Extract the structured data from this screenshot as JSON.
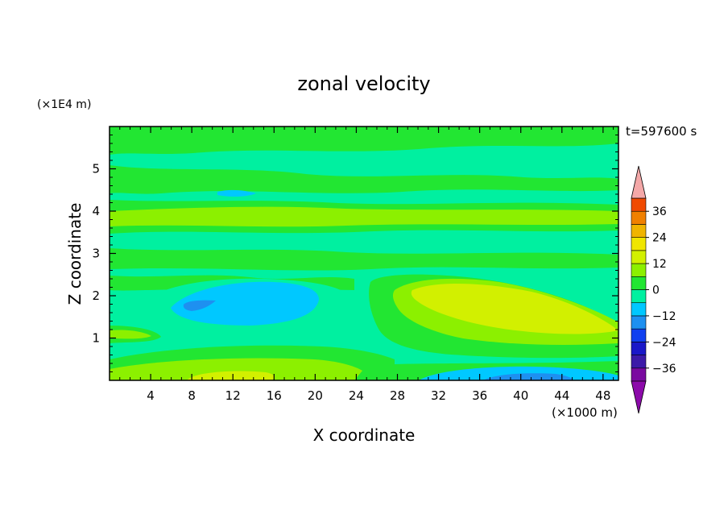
{
  "chart_data": {
    "type": "heatmap",
    "title": "zonal velocity",
    "xlabel": "X coordinate",
    "ylabel": "Z coordinate",
    "x_unit": "(×1000 m)",
    "y_unit": "(×1E4 m)",
    "time_label": "t=597600 s",
    "xlim": [
      0,
      49.5
    ],
    "ylim": [
      0,
      6
    ],
    "x_ticks": [
      "4",
      "8",
      "12",
      "16",
      "20",
      "24",
      "28",
      "32",
      "36",
      "40",
      "44",
      "48"
    ],
    "y_ticks": [
      "1",
      "2",
      "3",
      "4",
      "5"
    ],
    "colorbar": {
      "tick_labels": [
        "36",
        "24",
        "12",
        "0",
        "−12",
        "−24",
        "−36"
      ],
      "levels": [
        -42,
        -36,
        -30,
        -24,
        -18,
        -12,
        -6,
        0,
        6,
        12,
        18,
        24,
        30,
        36,
        42
      ],
      "colors": [
        "#7a0aa0",
        "#3c1aa8",
        "#1a18c8",
        "#1040f0",
        "#1e90f0",
        "#00c8ff",
        "#00f0a0",
        "#22e632",
        "#8cf000",
        "#d2f000",
        "#f0e600",
        "#f0b400",
        "#f08000",
        "#f04a00",
        "#f01e1e"
      ],
      "under_color": "#8c0aaa",
      "over_color": "#f4a8a8"
    },
    "field_bands": [
      {
        "z": [
          5.6,
          6.0
        ],
        "u": 1
      },
      {
        "z": [
          5.1,
          5.6
        ],
        "u": -3
      },
      {
        "z": [
          4.6,
          5.1
        ],
        "u": 2
      },
      {
        "z": [
          4.4,
          4.6
        ],
        "u": -4
      },
      {
        "z": [
          3.7,
          4.1
        ],
        "u": 7
      },
      {
        "z": [
          3.1,
          3.6
        ],
        "u": -3
      },
      {
        "z": [
          2.5,
          3.0
        ],
        "u": 2
      },
      {
        "z": [
          2.1,
          2.4
        ],
        "u": -3
      },
      {
        "z": [
          0.35,
          0.55
        ],
        "u": 2
      }
    ],
    "field_features": [
      {
        "label": "negative core",
        "x": 12.5,
        "z": 1.75,
        "u": -9
      },
      {
        "label": "negative core",
        "x": 10.5,
        "z": 1.8,
        "u": -14
      },
      {
        "label": "positive core",
        "x": 40,
        "z": 1.6,
        "u": 10
      },
      {
        "label": "positive surface jet",
        "x": 14,
        "z": 0.12,
        "u": 10
      },
      {
        "label": "negative surface core",
        "x": 40,
        "z": 0.08,
        "u": -12
      }
    ]
  }
}
